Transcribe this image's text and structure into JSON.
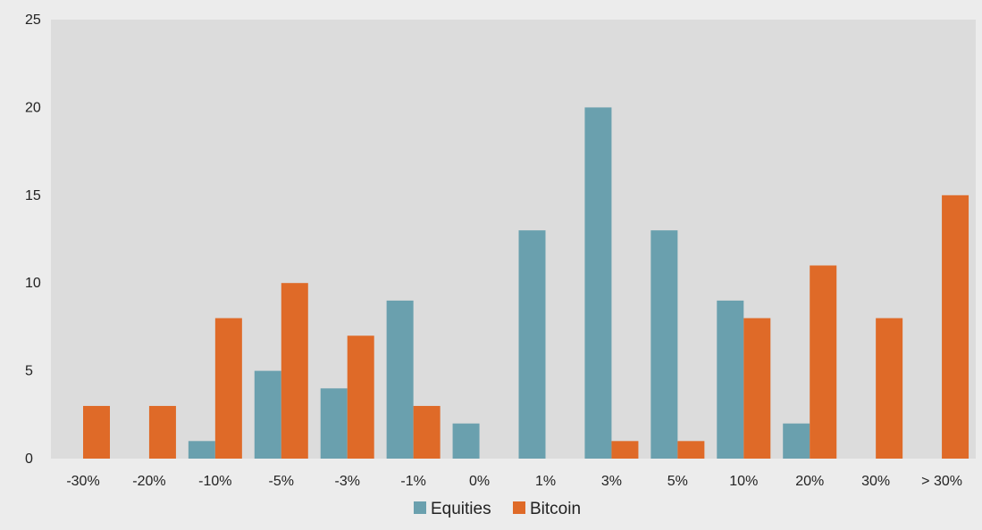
{
  "chart_data": {
    "type": "bar",
    "title": "",
    "xlabel": "",
    "ylabel": "",
    "categories": [
      "-30%",
      "-20%",
      "-10%",
      "-5%",
      "-3%",
      "-1%",
      "0%",
      "1%",
      "3%",
      "5%",
      "10%",
      "20%",
      "30%",
      "> 30%"
    ],
    "series": [
      {
        "name": "Equities",
        "values": [
          0,
          0,
          1,
          5,
          4,
          9,
          2,
          13,
          20,
          13,
          9,
          2,
          0,
          0
        ],
        "color": "#6aa0ae"
      },
      {
        "name": "Bitcoin",
        "values": [
          3,
          3,
          8,
          10,
          7,
          3,
          0,
          0,
          1,
          1,
          8,
          11,
          8,
          15
        ],
        "color": "#df6a28"
      }
    ],
    "ylim": [
      0,
      25
    ],
    "yticks": [
      0,
      5,
      10,
      15,
      20,
      25
    ],
    "grid": false,
    "legend_position": "bottom-center",
    "plot_background": "#dcdcdc",
    "page_background": "#ececec"
  }
}
